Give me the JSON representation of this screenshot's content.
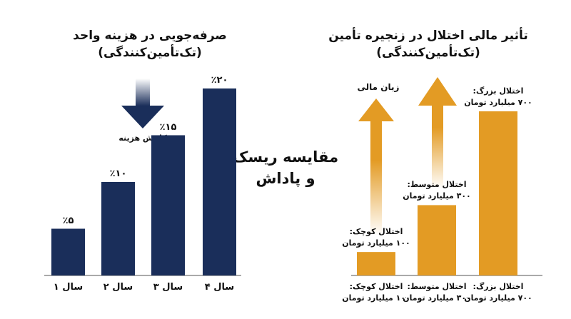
{
  "left_chart": {
    "title_line1": "صرفه‌جویی در هزینه واحد",
    "title_line2": "(تک‌تأمین‌کنندگی)",
    "arrow_label": "کاهش هزینه",
    "color": "#1a2e5a",
    "arrow_color": "#1a2e5a"
  },
  "right_chart": {
    "title_line1": "تأثیر مالی اختلال در زنجیره تأمین",
    "title_line2": "(تک‌تأمین‌کنندگی)",
    "arrow_label": "زیان مالی",
    "color": "#e39b24",
    "arrow_color": "#e39b24"
  },
  "center": {
    "line1": "مقایسه ریسک",
    "line2": "و پاداش"
  },
  "chart_data": [
    {
      "type": "bar",
      "categories": [
        "سال ۱",
        "سال ۲",
        "سال ۳",
        "سال ۴"
      ],
      "values": [
        5,
        10,
        15,
        20
      ],
      "value_labels": [
        "٪۵",
        "٪۱۰",
        "٪۱۵",
        "٪۲۰"
      ],
      "title": "صرفه‌جویی در هزینه واحد (تک‌تأمین‌کنندگی)",
      "ylim": [
        0,
        20
      ]
    },
    {
      "type": "bar",
      "categories": [
        "اختلال کوچک: ۱۰۰ میلیارد تومان",
        "اختلال متوسط: ۳۰۰ میلیارد تومان",
        "اختلال بزرگ: ۷۰۰ میلیارد تومان"
      ],
      "category_lines": [
        [
          "اختلال کوچک:",
          "۱۰۰ میلیارد تومان"
        ],
        [
          "اختلال متوسط:",
          "۳۰۰ میلیارد تومان"
        ],
        [
          "اختلال بزرگ:",
          "۷۰۰ میلیارد تومان"
        ]
      ],
      "values": [
        100,
        300,
        700
      ],
      "value_label_lines": [
        [
          "اختلال کوچک:",
          "۱۰۰ میلیارد تومان"
        ],
        [
          "اختلال متوسط:",
          "۳۰۰ میلیارد تومان"
        ],
        [
          "اختلال بزرگ:",
          "۷۰۰ میلیارد تومان"
        ]
      ],
      "title": "تأثیر مالی اختلال در زنجیره تأمین (تک‌تأمین‌کنندگی)",
      "ylim": [
        0,
        700
      ]
    }
  ]
}
